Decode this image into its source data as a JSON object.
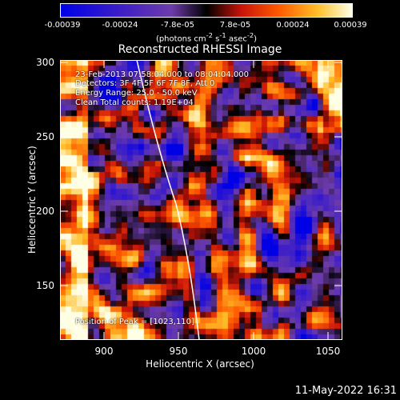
{
  "colorbar": {
    "ticks": [
      "-0.00039",
      "-0.00024",
      "-7.8e-05",
      "7.8e-05",
      "0.00024",
      "0.00039"
    ],
    "units_main": "(photons cm",
    "units_sup1": "-2",
    "units_mid1": " s",
    "units_sup2": "-1",
    "units_mid2": " asec",
    "units_sup3": "-2",
    "units_end": ")"
  },
  "title": "Reconstructed RHESSI Image",
  "info": {
    "time_range": "23-Feb-2013 07:58:04.000 to 08:04:04.000",
    "detectors": "Detectors: 3F 4F 5F 6F 7F 8F, Att 0",
    "energy": "Energy Range: 25.0 - 50.0 keV",
    "clean": "Clean     Total counts: 1.19E+04",
    "peak": "Position of Peak = [1023,110]"
  },
  "x_axis": {
    "label": "Heliocentric X (arcsec)",
    "ticks": [
      "900",
      "950",
      "1000",
      "1050"
    ]
  },
  "y_axis": {
    "label": "Heliocentric Y (arcsec)",
    "ticks": [
      "300",
      "250",
      "200",
      "150"
    ]
  },
  "timestamp": "11-May-2022 16:31",
  "colors": {
    "limb": "#ffffff",
    "background": "#000000"
  }
}
